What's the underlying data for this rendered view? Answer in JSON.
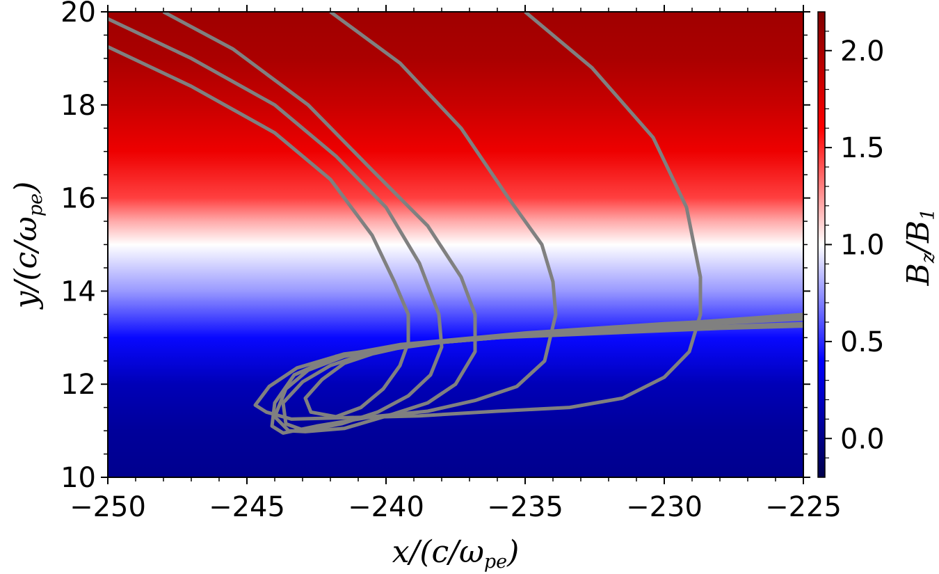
{
  "chart_data": {
    "type": "heatmap",
    "title": "",
    "xlabel": {
      "main": "x/(c/ω",
      "sub": "pe",
      "close": ")"
    },
    "ylabel": {
      "main": "y/(c/ω",
      "sub": "pe",
      "close": ")"
    },
    "xlim": [
      -250,
      -225
    ],
    "ylim": [
      10,
      20
    ],
    "x_ticks": [
      -250,
      -245,
      -240,
      -235,
      -230,
      -225
    ],
    "x_tick_labels": [
      "−250",
      "−245",
      "−240",
      "−235",
      "−230",
      "−225"
    ],
    "y_ticks": [
      10,
      12,
      14,
      16,
      18,
      20
    ],
    "y_tick_labels": [
      "10",
      "12",
      "14",
      "16",
      "18",
      "20"
    ],
    "grid": false,
    "heatmap": {
      "quantity_varies_along": "y",
      "colormap": "seismic",
      "profile": [
        {
          "y": 10.0,
          "value": 0.02
        },
        {
          "y": 11.0,
          "value": 0.06
        },
        {
          "y": 12.0,
          "value": 0.16
        },
        {
          "y": 13.0,
          "value": 0.42
        },
        {
          "y": 14.0,
          "value": 0.76
        },
        {
          "y": 15.0,
          "value": 1.0
        },
        {
          "y": 15.5,
          "value": 1.2
        },
        {
          "y": 16.0,
          "value": 1.45
        },
        {
          "y": 17.0,
          "value": 1.68
        },
        {
          "y": 18.0,
          "value": 1.86
        },
        {
          "y": 19.0,
          "value": 2.0
        },
        {
          "y": 20.0,
          "value": 2.05
        }
      ]
    },
    "colorbar": {
      "label": {
        "main": "B",
        "sub1": "z",
        "slash": "/B",
        "sub2": "1"
      },
      "range": [
        -0.2,
        2.2
      ],
      "ticks": [
        0.0,
        0.5,
        1.0,
        1.5,
        2.0
      ],
      "tick_labels": [
        "0.0",
        "0.5",
        "1.0",
        "1.5",
        "2.0"
      ],
      "colors": {
        "low": "#00004c",
        "mid_low": "#0000ff",
        "mid": "#ffffff",
        "mid_high": "#ff0000",
        "high": "#800000"
      }
    },
    "trajectory_color": "#808080",
    "series": [
      {
        "points": [
          [
            -250,
            19.25
          ],
          [
            -247,
            18.4
          ],
          [
            -244,
            17.4
          ],
          [
            -242,
            16.4
          ],
          [
            -240.5,
            15.2
          ],
          [
            -239.7,
            14.2
          ],
          [
            -239.2,
            13.5
          ],
          [
            -239.2,
            12.9
          ],
          [
            -239.5,
            12.4
          ],
          [
            -240.1,
            11.9
          ],
          [
            -240.9,
            11.5
          ],
          [
            -241.8,
            11.3
          ],
          [
            -242.7,
            11.4
          ],
          [
            -242.9,
            11.7
          ],
          [
            -242.3,
            12.1
          ],
          [
            -241.5,
            12.45
          ],
          [
            -240.5,
            12.65
          ],
          [
            -239,
            12.85
          ],
          [
            -236,
            13.0
          ],
          [
            -232,
            13.1
          ],
          [
            -228,
            13.2
          ],
          [
            -225,
            13.25
          ]
        ]
      },
      {
        "points": [
          [
            -250,
            19.85
          ],
          [
            -247,
            19.0
          ],
          [
            -244,
            18.0
          ],
          [
            -241.8,
            16.9
          ],
          [
            -240,
            15.8
          ],
          [
            -238.8,
            14.6
          ],
          [
            -238.1,
            13.5
          ],
          [
            -238,
            12.8
          ],
          [
            -238.4,
            12.2
          ],
          [
            -239.2,
            11.75
          ],
          [
            -240.3,
            11.4
          ],
          [
            -241.6,
            11.15
          ],
          [
            -242.9,
            11.0
          ],
          [
            -243.6,
            11.15
          ],
          [
            -243.7,
            11.6
          ],
          [
            -243.0,
            12.05
          ],
          [
            -242.0,
            12.4
          ],
          [
            -240.5,
            12.7
          ],
          [
            -238,
            12.9
          ],
          [
            -235,
            13.05
          ],
          [
            -230,
            13.2
          ],
          [
            -225,
            13.3
          ]
        ]
      },
      {
        "points": [
          [
            -248,
            20.0
          ],
          [
            -245.5,
            19.2
          ],
          [
            -242.8,
            18.0
          ],
          [
            -240.5,
            16.6
          ],
          [
            -238.5,
            15.4
          ],
          [
            -237.3,
            14.3
          ],
          [
            -236.8,
            13.5
          ],
          [
            -236.8,
            12.7
          ],
          [
            -237.5,
            12.0
          ],
          [
            -238.5,
            11.6
          ],
          [
            -239.8,
            11.35
          ],
          [
            -241.5,
            11.05
          ],
          [
            -242.9,
            10.98
          ],
          [
            -243.5,
            11.0
          ],
          [
            -244,
            11.3
          ],
          [
            -243.6,
            11.9
          ],
          [
            -242.8,
            12.3
          ],
          [
            -241.5,
            12.6
          ],
          [
            -239,
            12.85
          ],
          [
            -235,
            13.05
          ],
          [
            -230,
            13.25
          ],
          [
            -225,
            13.4
          ]
        ]
      },
      {
        "points": [
          [
            -242,
            20.0
          ],
          [
            -239.5,
            18.9
          ],
          [
            -237.3,
            17.5
          ],
          [
            -235.6,
            16.0
          ],
          [
            -234.4,
            15.0
          ],
          [
            -234,
            14.2
          ],
          [
            -233.9,
            13.5
          ],
          [
            -234.3,
            12.5
          ],
          [
            -235.3,
            11.95
          ],
          [
            -236.8,
            11.65
          ],
          [
            -238.5,
            11.42
          ],
          [
            -240.5,
            11.3
          ],
          [
            -242.5,
            11.1
          ],
          [
            -243.7,
            10.95
          ],
          [
            -244.1,
            11.1
          ],
          [
            -244.0,
            11.6
          ],
          [
            -243.3,
            12.2
          ],
          [
            -241.8,
            12.6
          ],
          [
            -239.5,
            12.85
          ],
          [
            -235,
            13.1
          ],
          [
            -230,
            13.3
          ],
          [
            -225,
            13.45
          ]
        ]
      },
      {
        "points": [
          [
            -235,
            20.0
          ],
          [
            -232.6,
            18.8
          ],
          [
            -230.4,
            17.3
          ],
          [
            -229.2,
            15.8
          ],
          [
            -228.7,
            14.3
          ],
          [
            -228.7,
            13.5
          ],
          [
            -229.1,
            12.7
          ],
          [
            -230,
            12.15
          ],
          [
            -231.5,
            11.7
          ],
          [
            -233.4,
            11.5
          ],
          [
            -236,
            11.42
          ],
          [
            -238.8,
            11.32
          ],
          [
            -241.5,
            11.28
          ],
          [
            -243.4,
            11.25
          ],
          [
            -244.3,
            11.4
          ],
          [
            -244.7,
            11.55
          ],
          [
            -244.2,
            11.95
          ],
          [
            -243.2,
            12.35
          ],
          [
            -241.5,
            12.65
          ],
          [
            -238,
            12.9
          ],
          [
            -232,
            13.2
          ],
          [
            -225,
            13.5
          ]
        ]
      }
    ]
  }
}
